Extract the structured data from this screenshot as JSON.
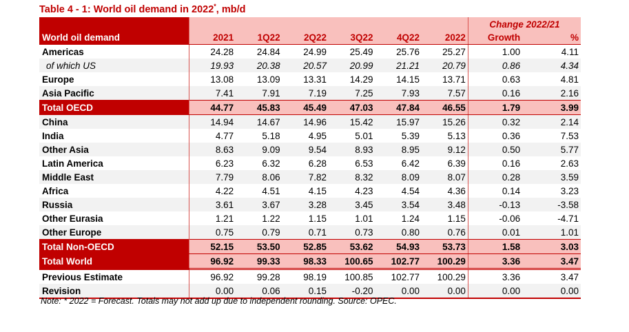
{
  "title": "Table 4 - 1: World oil demand in 2022",
  "title_sup": "*",
  "title_units": ", mb/d",
  "header": {
    "change_label": "Change 2022/21",
    "row_label": "World oil demand",
    "columns": [
      "2021",
      "1Q22",
      "2Q22",
      "3Q22",
      "4Q22",
      "2022",
      "Growth",
      "%"
    ]
  },
  "rows": [
    {
      "label": "Americas",
      "values": [
        "24.28",
        "24.84",
        "24.99",
        "25.49",
        "25.76",
        "25.27",
        "1.00",
        "4.11"
      ]
    },
    {
      "label": "of which US",
      "values": [
        "19.93",
        "20.38",
        "20.57",
        "20.99",
        "21.21",
        "20.79",
        "0.86",
        "4.34"
      ]
    },
    {
      "label": "Europe",
      "values": [
        "13.08",
        "13.09",
        "13.31",
        "14.29",
        "14.15",
        "13.71",
        "0.63",
        "4.81"
      ]
    },
    {
      "label": "Asia Pacific",
      "values": [
        "7.41",
        "7.91",
        "7.19",
        "7.25",
        "7.93",
        "7.57",
        "0.16",
        "2.16"
      ]
    },
    {
      "label": "Total OECD",
      "values": [
        "44.77",
        "45.83",
        "45.49",
        "47.03",
        "47.84",
        "46.55",
        "1.79",
        "3.99"
      ]
    },
    {
      "label": "China",
      "values": [
        "14.94",
        "14.67",
        "14.96",
        "15.42",
        "15.97",
        "15.26",
        "0.32",
        "2.14"
      ]
    },
    {
      "label": "India",
      "values": [
        "4.77",
        "5.18",
        "4.95",
        "5.01",
        "5.39",
        "5.13",
        "0.36",
        "7.53"
      ]
    },
    {
      "label": "Other Asia",
      "values": [
        "8.63",
        "9.09",
        "9.54",
        "8.93",
        "8.95",
        "9.12",
        "0.50",
        "5.77"
      ]
    },
    {
      "label": "Latin America",
      "values": [
        "6.23",
        "6.32",
        "6.28",
        "6.53",
        "6.42",
        "6.39",
        "0.16",
        "2.63"
      ]
    },
    {
      "label": "Middle East",
      "values": [
        "7.79",
        "8.06",
        "7.82",
        "8.32",
        "8.09",
        "8.07",
        "0.28",
        "3.59"
      ]
    },
    {
      "label": "Africa",
      "values": [
        "4.22",
        "4.51",
        "4.15",
        "4.23",
        "4.54",
        "4.36",
        "0.14",
        "3.23"
      ]
    },
    {
      "label": "Russia",
      "values": [
        "3.61",
        "3.67",
        "3.28",
        "3.45",
        "3.54",
        "3.48",
        "-0.13",
        "-3.58"
      ]
    },
    {
      "label": "Other Eurasia",
      "values": [
        "1.21",
        "1.22",
        "1.15",
        "1.01",
        "1.24",
        "1.15",
        "-0.06",
        "-4.71"
      ]
    },
    {
      "label": "Other Europe",
      "values": [
        "0.75",
        "0.79",
        "0.71",
        "0.73",
        "0.80",
        "0.76",
        "0.01",
        "1.01"
      ]
    },
    {
      "label": "Total Non-OECD",
      "values": [
        "52.15",
        "53.50",
        "52.85",
        "53.62",
        "54.93",
        "53.73",
        "1.58",
        "3.03"
      ]
    },
    {
      "label": "Total World",
      "values": [
        "96.92",
        "99.33",
        "98.33",
        "100.65",
        "102.77",
        "100.29",
        "3.36",
        "3.47"
      ]
    },
    {
      "label": "Previous Estimate",
      "values": [
        "96.92",
        "99.28",
        "98.19",
        "100.85",
        "102.77",
        "100.29",
        "3.36",
        "3.47"
      ]
    },
    {
      "label": "Revision",
      "values": [
        "0.00",
        "0.06",
        "0.15",
        "-0.20",
        "0.00",
        "0.00",
        "0.00",
        "0.00"
      ]
    }
  ],
  "note": "Note: * 2022 = Forecast. Totals may not add up due to independent rounding. Source: OPEC.",
  "colors": {
    "accent": "#c00000",
    "header_fill": "#f9c0bd",
    "alt_fill": "#f2f2f2"
  }
}
